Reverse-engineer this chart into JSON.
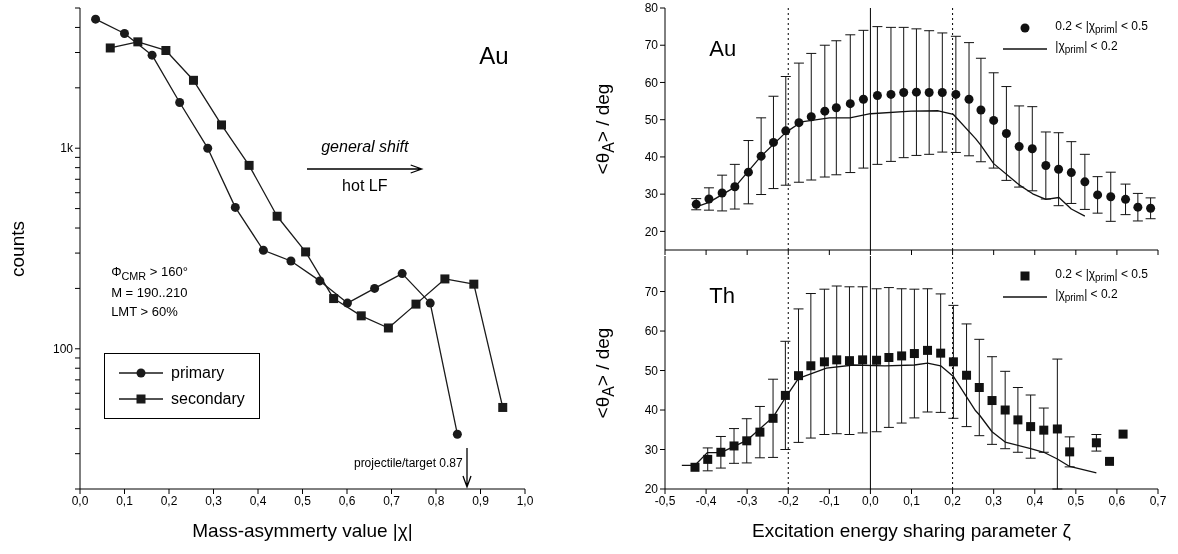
{
  "chart_data": [
    {
      "type": "line",
      "xlabel": "Mass-asymmerty value |χ|",
      "ylabel": "counts",
      "log": "y",
      "legend": "bottom left",
      "xlim": [
        0,
        1
      ],
      "ylim": [
        20,
        5000
      ],
      "xticks": [
        {
          "value": 0,
          "label": "0,0"
        },
        {
          "value": 0.1,
          "label": "0,1"
        },
        {
          "value": 0.2,
          "label": "0,2"
        },
        {
          "value": 0.3,
          "label": "0,3"
        },
        {
          "value": 0.4,
          "label": "0,4"
        },
        {
          "value": 0.5,
          "label": "0,5"
        },
        {
          "value": 0.6,
          "label": "0,6"
        },
        {
          "value": 0.7,
          "label": "0,7"
        },
        {
          "value": 0.8,
          "label": "0,8"
        },
        {
          "value": 0.9,
          "label": "0,9"
        },
        {
          "value": 1,
          "label": "1,0"
        }
      ],
      "yticks": [
        {
          "value": 20,
          "label": null
        },
        {
          "value": 30,
          "label": null
        },
        {
          "value": 40,
          "label": null
        },
        {
          "value": 50,
          "label": null
        },
        {
          "value": 60,
          "label": null
        },
        {
          "value": 70,
          "label": null
        },
        {
          "value": 80,
          "label": null
        },
        {
          "value": 90,
          "label": null
        },
        100,
        {
          "value": 200,
          "label": null
        },
        {
          "value": 300,
          "label": null
        },
        {
          "value": 400,
          "label": null
        },
        {
          "value": 500,
          "label": null
        },
        {
          "value": 600,
          "label": null
        },
        {
          "value": 700,
          "label": null
        },
        {
          "value": 800,
          "label": null
        },
        {
          "value": 900,
          "label": null
        },
        {
          "value": 1000,
          "label": "1k"
        },
        {
          "value": 2000,
          "label": null
        },
        {
          "value": 3000,
          "label": null
        },
        {
          "value": 4000,
          "label": null
        },
        {
          "value": 5000,
          "label": null
        }
      ],
      "annotations": [
        "Au",
        "general shift",
        "hot LF",
        "Φ$_{CMR}$ > 160°",
        "M = 190..210",
        "LMT > 60%",
        "projectile/target 0.87"
      ],
      "series": [
        {
          "name": "primary",
          "marker": "circle",
          "color": "#1a1a1a",
          "x": [
            0.035,
            0.1,
            0.162,
            0.224,
            0.287,
            0.349,
            0.412,
            0.474,
            0.539,
            0.601,
            0.662,
            0.724,
            0.787,
            0.848
          ],
          "values": [
            4400,
            3730,
            2910,
            1690,
            1000,
            507,
            310,
            274,
            218,
            169,
            200,
            237,
            169,
            37.5
          ]
        },
        {
          "name": "secondary",
          "marker": "square",
          "color": "#1a1a1a",
          "x": [
            0.068,
            0.13,
            0.193,
            0.255,
            0.318,
            0.38,
            0.443,
            0.507,
            0.57,
            0.632,
            0.693,
            0.755,
            0.82,
            0.885,
            0.95
          ],
          "values": [
            3160,
            3390,
            3070,
            2180,
            1306,
            821,
            458,
            304,
            178,
            146,
            127,
            167,
            223,
            210,
            51
          ]
        }
      ]
    },
    {
      "type": "scatter",
      "ylabel": "<θ$_{A}$> / deg",
      "legend": "top right",
      "tick_labels": "y",
      "xlim": [
        -0.5,
        0.7
      ],
      "ylim": [
        15,
        80
      ],
      "xticks": [
        -0.5,
        -0.4,
        -0.3,
        -0.2,
        -0.1,
        0,
        0.1,
        0.2,
        0.3,
        0.4,
        0.5,
        0.6,
        0.7
      ],
      "yticks": [
        20,
        30,
        40,
        50,
        60,
        70,
        80
      ],
      "annotations": [
        "Au"
      ],
      "ref_lines": [
        {
          "axis": "x",
          "value": -0.2,
          "line_style": "dotted"
        },
        {
          "axis": "x",
          "value": 0,
          "line_style": "solid"
        },
        {
          "axis": "x",
          "value": 0.2,
          "line_style": "dotted"
        }
      ],
      "series": [
        {
          "name": "0.2 < |χ$_{prim}$| < 0.5",
          "marker": "circle",
          "color": "#111111",
          "x": [
            -0.424,
            -0.393,
            -0.361,
            -0.33,
            -0.297,
            -0.266,
            -0.236,
            -0.206,
            -0.174,
            -0.144,
            -0.111,
            -0.083,
            -0.049,
            -0.017,
            0.017,
            0.05,
            0.081,
            0.112,
            0.143,
            0.175,
            0.208,
            0.24,
            0.269,
            0.3,
            0.331,
            0.362,
            0.394,
            0.427,
            0.458,
            0.489,
            0.522,
            0.553,
            0.585,
            0.621,
            0.651,
            0.682
          ],
          "values": [
            27.3,
            28.7,
            30.3,
            32.0,
            35.9,
            40.2,
            43.9,
            47.0,
            49.2,
            50.8,
            52.3,
            53.2,
            54.3,
            55.5,
            56.5,
            56.8,
            57.3,
            57.4,
            57.3,
            57.3,
            56.8,
            55.5,
            52.6,
            49.8,
            46.3,
            42.8,
            42.2,
            37.7,
            36.7,
            35.8,
            33.3,
            29.8,
            29.3,
            28.6,
            26.5,
            26.2
          ],
          "errors": [
            1.5,
            3,
            4.8,
            6,
            8.5,
            10.3,
            12.4,
            14.6,
            16,
            17,
            17.7,
            18,
            18.5,
            18.5,
            18.5,
            18,
            17.5,
            17,
            16.6,
            16,
            15.6,
            15.2,
            13.9,
            12.8,
            12.6,
            10.9,
            11.3,
            9,
            9.8,
            8.3,
            7.4,
            4.9,
            6.6,
            4.1,
            3.7,
            2.8
          ]
        },
        {
          "name": "|χ$_{prim}$| < 0.2",
          "type": "line",
          "marker": "none",
          "color": "#111111",
          "x": [
            -0.424,
            -0.393,
            -0.33,
            -0.266,
            -0.206,
            -0.168,
            -0.1,
            -0.05,
            0,
            0.099,
            0.165,
            0.202,
            0.256,
            0.269,
            0.3,
            0.362,
            0.395,
            0.427,
            0.459,
            0.489,
            0.522
          ],
          "values": [
            26.6,
            27.8,
            31.9,
            40.2,
            46.6,
            49.4,
            50.5,
            50.5,
            51.6,
            52.3,
            52.4,
            51.4,
            44.9,
            43.1,
            38.2,
            32.5,
            30.1,
            28.6,
            29.1,
            26.0,
            24.1
          ]
        }
      ]
    },
    {
      "type": "scatter",
      "xlabel": "Excitation energy sharing parameter ζ",
      "ylabel": "<θ$_{A}$> / deg",
      "legend": "top right",
      "xlim": [
        -0.5,
        0.7
      ],
      "ylim": [
        20,
        79
      ],
      "xticks": [
        {
          "value": -0.5,
          "label": "-0,5"
        },
        {
          "value": -0.4,
          "label": "-0,4"
        },
        {
          "value": -0.3,
          "label": "-0,3"
        },
        {
          "value": -0.2,
          "label": "-0,2"
        },
        {
          "value": -0.1,
          "label": "-0,1"
        },
        {
          "value": 0,
          "label": "0,0"
        },
        {
          "value": 0.1,
          "label": "0,1"
        },
        {
          "value": 0.2,
          "label": "0,2"
        },
        {
          "value": 0.3,
          "label": "0,3"
        },
        {
          "value": 0.4,
          "label": "0,4"
        },
        {
          "value": 0.5,
          "label": "0,5"
        },
        {
          "value": 0.6,
          "label": "0,6"
        },
        {
          "value": 0.7,
          "label": "0,7"
        }
      ],
      "yticks": [
        20,
        30,
        40,
        50,
        60,
        70
      ],
      "annotations": [
        "Th"
      ],
      "ref_lines": [
        {
          "axis": "x",
          "value": -0.2,
          "line_style": "dotted"
        },
        {
          "axis": "x",
          "value": 0,
          "line_style": "solid"
        },
        {
          "axis": "x",
          "value": 0.2,
          "line_style": "dotted"
        }
      ],
      "series": [
        {
          "name": "0.2 < |χ$_{prim}$| < 0.5",
          "marker": "square",
          "color": "#111111",
          "x": [
            -0.427,
            -0.396,
            -0.364,
            -0.332,
            -0.301,
            -0.269,
            -0.237,
            -0.207,
            -0.175,
            -0.145,
            -0.112,
            -0.082,
            -0.051,
            -0.019,
            0.015,
            0.045,
            0.076,
            0.107,
            0.139,
            0.171,
            0.202,
            0.234,
            0.265,
            0.296,
            0.328,
            0.359,
            0.39,
            0.422,
            0.455,
            0.485,
            0.55,
            0.582,
            0.615
          ],
          "values": [
            25.5,
            27.5,
            29.3,
            30.9,
            32.2,
            34.4,
            37.9,
            43.7,
            48.7,
            51.2,
            52.2,
            52.7,
            52.5,
            52.7,
            52.6,
            53.3,
            53.7,
            54.3,
            55.1,
            54.4,
            52.2,
            48.8,
            45.7,
            42.4,
            40.0,
            37.5,
            35.8,
            34.9,
            35.2,
            29.4,
            31.7,
            27.0,
            33.9
          ],
          "errors": [
            null,
            2.9,
            4,
            4.4,
            5.6,
            6.5,
            9.9,
            13.7,
            16.9,
            18.3,
            18.4,
            18.7,
            18.7,
            18.5,
            18.1,
            17.7,
            17,
            16.3,
            15.6,
            15,
            14.3,
            13,
            12.2,
            11.1,
            9.8,
            8.2,
            8,
            5.6,
            [
              20,
              52.9
            ],
            3.8,
            2.1,
            null,
            null
          ]
        },
        {
          "name": "|χ$_{prim}$| < 0.2",
          "type": "line",
          "marker": "none",
          "color": "#111111",
          "x": [
            -0.459,
            -0.427,
            -0.397,
            -0.364,
            -0.301,
            -0.237,
            -0.207,
            -0.175,
            -0.107,
            -0.041,
            0.035,
            0.107,
            0.139,
            0.171,
            0.202,
            0.256,
            0.265,
            0.296,
            0.328,
            0.39,
            0.422,
            0.455,
            0.485,
            0.55
          ],
          "values": [
            26.0,
            26.0,
            29.2,
            29.2,
            32.3,
            38.2,
            43.1,
            48.0,
            50.6,
            51.4,
            51.2,
            51.4,
            51.9,
            51.2,
            48.5,
            39.8,
            38.8,
            34.5,
            31.9,
            30.2,
            29.3,
            27.6,
            25.7,
            24.1
          ]
        }
      ]
    }
  ]
}
